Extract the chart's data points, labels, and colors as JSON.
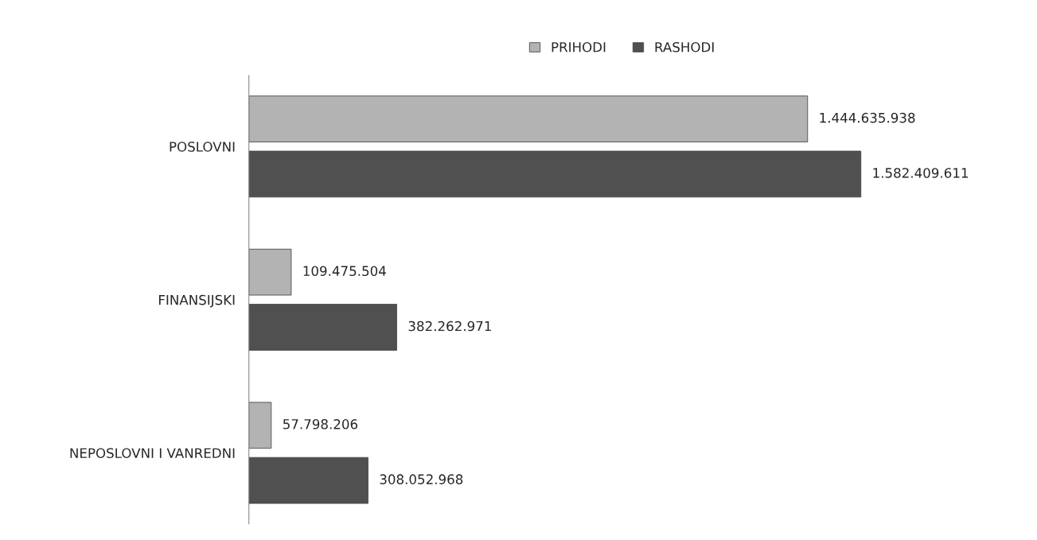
{
  "chart_data": {
    "type": "bar",
    "orientation": "horizontal",
    "categories": [
      "POSLOVNI",
      "FINANSIJSKI",
      "NEPOSLOVNI I VANREDNI"
    ],
    "series": [
      {
        "name": "PRIHODI",
        "color": "#b3b3b3",
        "values": [
          1444635938,
          109475504,
          57798206
        ],
        "value_labels": [
          "1.444.635.938",
          "109.475.504",
          "57.798.206"
        ]
      },
      {
        "name": "RASHODI",
        "color": "#505050",
        "values": [
          1582409611,
          382262971,
          308052968
        ],
        "value_labels": [
          "1.582.409.611",
          "382.262.971",
          "308.052.968"
        ]
      }
    ],
    "legend": "top",
    "grid": false
  }
}
